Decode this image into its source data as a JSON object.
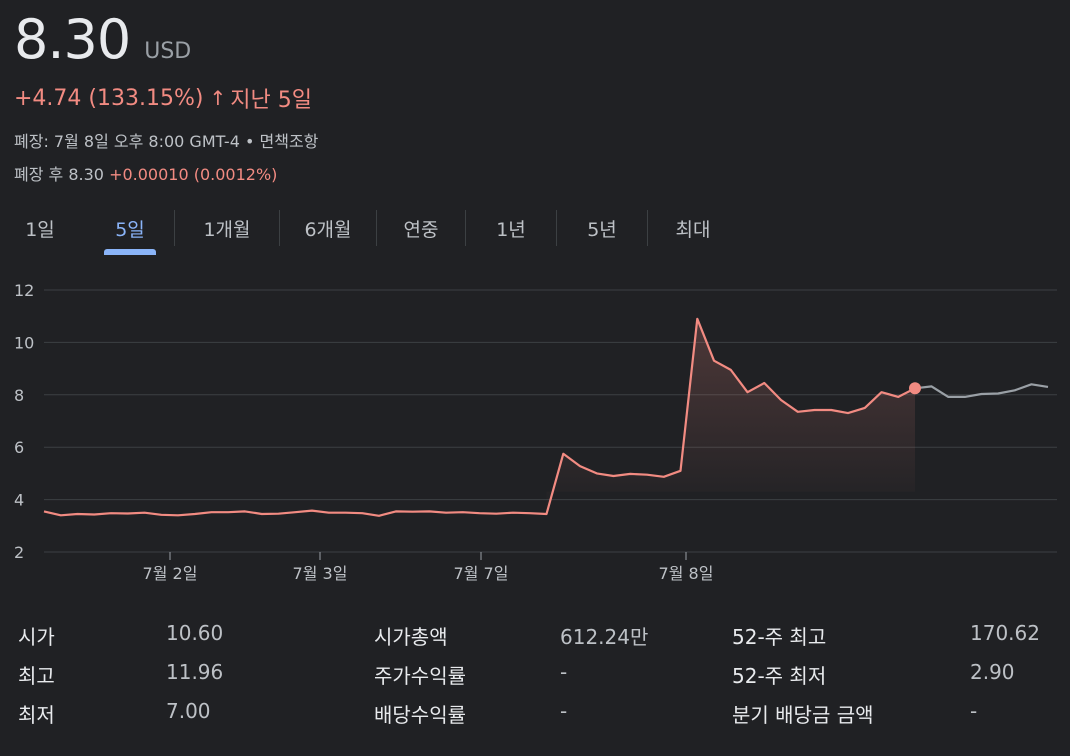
{
  "quote": {
    "price": "8.30",
    "currency": "USD",
    "change": "+4.74 (133.15%)",
    "arrow": "↑",
    "period": "지난 5일",
    "close_info": "폐장: 7월 8일 오후 8:00 GMT-4 • 면책조항",
    "after_hours_label": "폐장 후 8.30",
    "after_hours_change": "+0.00010 (0.0012%)"
  },
  "tabs": [
    {
      "label": "1일",
      "active": false
    },
    {
      "label": "5일",
      "active": true
    },
    {
      "label": "1개월",
      "active": false
    },
    {
      "label": "6개월",
      "active": false
    },
    {
      "label": "연중",
      "active": false
    },
    {
      "label": "1년",
      "active": false
    },
    {
      "label": "5년",
      "active": false
    },
    {
      "label": "최대",
      "active": false
    }
  ],
  "chart_data": {
    "type": "line",
    "title": "",
    "xlabel": "",
    "ylabel": "",
    "ylim": [
      2,
      12
    ],
    "yticks": [
      12,
      10,
      8,
      6,
      4,
      2
    ],
    "grid": true,
    "xticks": [
      "7월 2일",
      "7월 3일",
      "7월 7일",
      "7월 8일"
    ],
    "series": [
      {
        "color": "#f28b82",
        "values": [
          3.55,
          3.4,
          3.45,
          3.43,
          3.48,
          3.47,
          3.5,
          3.42,
          3.4,
          3.45,
          3.52,
          3.52,
          3.55,
          3.45,
          3.46,
          3.52,
          3.58,
          3.5,
          3.5,
          3.48,
          3.38,
          3.55,
          3.54,
          3.55,
          3.5,
          3.52,
          3.48,
          3.46,
          3.5,
          3.48,
          3.45,
          5.75,
          5.28,
          5.0,
          4.9,
          4.98,
          4.95,
          4.87,
          5.1,
          10.9,
          9.3,
          8.95,
          8.1,
          8.45,
          7.8,
          7.35,
          7.42,
          7.42,
          7.3,
          7.5,
          8.1,
          7.92,
          8.25
        ]
      },
      {
        "color": "#9aa0a6",
        "values": [
          8.25,
          8.32,
          7.92,
          7.92,
          8.03,
          8.05,
          8.17,
          8.4,
          8.3
        ]
      }
    ]
  },
  "stats": {
    "col1": [
      {
        "label": "시가",
        "value": "10.60"
      },
      {
        "label": "최고",
        "value": "11.96"
      },
      {
        "label": "최저",
        "value": "7.00"
      }
    ],
    "col2": [
      {
        "label": "시가총액",
        "value": "612.24만"
      },
      {
        "label": "주가수익률",
        "value": "-"
      },
      {
        "label": "배당수익률",
        "value": "-"
      }
    ],
    "col3": [
      {
        "label": "52-주 최고",
        "value": "170.62"
      },
      {
        "label": "52-주 최저",
        "value": "2.90"
      },
      {
        "label": "분기 배당금 금액",
        "value": "-"
      }
    ]
  }
}
